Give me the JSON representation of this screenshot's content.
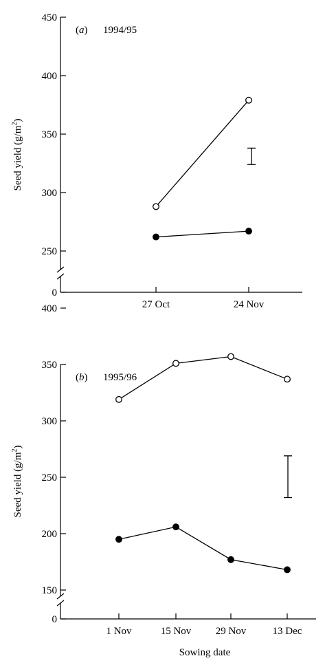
{
  "chart_data": [
    {
      "type": "line",
      "panel_label": "(a)",
      "panel_label_letter": "a",
      "season": "1994/95",
      "categories": [
        "27 Oct",
        "24 Nov"
      ],
      "series": [
        {
          "marker": "open-circle",
          "values": [
            288,
            379
          ]
        },
        {
          "marker": "filled-circle",
          "values": [
            262,
            267
          ]
        }
      ],
      "ylabel": "Seed yield (g/m²)",
      "ylabel_main": "Seed yield (g/m",
      "ylabel_sup": "2",
      "ylabel_end": ")",
      "xlabel": "",
      "yticks": [
        0,
        250,
        300,
        350,
        400,
        450
      ],
      "ylim": [
        225,
        450
      ],
      "axis_break": true,
      "error_bar": {
        "low": 324,
        "high": 338
      },
      "grid": false
    },
    {
      "type": "line",
      "panel_label": "(b)",
      "panel_label_letter": "b",
      "season": "1995/96",
      "categories": [
        "1 Nov",
        "15 Nov",
        "29 Nov",
        "13 Dec"
      ],
      "series": [
        {
          "marker": "open-circle",
          "values": [
            319,
            351,
            357,
            337
          ]
        },
        {
          "marker": "filled-circle",
          "values": [
            195,
            206,
            177,
            168
          ]
        }
      ],
      "ylabel": "Seed yield (g/m²)",
      "ylabel_main": "Seed yield (g/m",
      "ylabel_sup": "2",
      "ylabel_end": ")",
      "xlabel": "Sowing date",
      "yticks": [
        0,
        150,
        200,
        250,
        300,
        350,
        400
      ],
      "ylim": [
        125,
        400
      ],
      "axis_break": true,
      "error_bar": {
        "low": 232,
        "high": 269
      },
      "grid": false
    }
  ]
}
